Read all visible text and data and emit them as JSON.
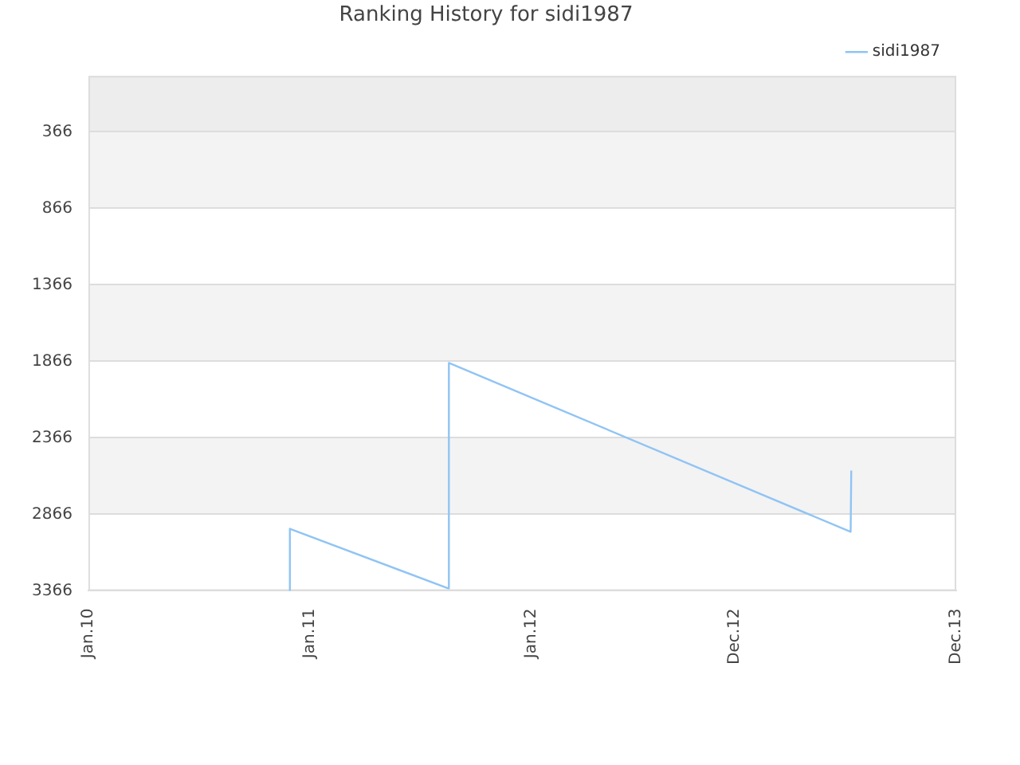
{
  "chart_data": {
    "type": "line",
    "title": "Ranking History for sidi1987",
    "x": [
      "2010-11-28",
      "2010-11-29",
      "2011-08-17",
      "2011-08-18",
      "2013-06-10",
      "2013-06-11"
    ],
    "series": [
      {
        "name": "sidi1987",
        "color": "#90c4f4",
        "values": [
          3366,
          2960,
          3350,
          1876,
          2980,
          2580
        ]
      }
    ],
    "xlim": [
      "2010-01-01",
      "2013-12-01"
    ],
    "xticks": [
      {
        "value": "2010-01-01",
        "label": "Jan.10"
      },
      {
        "value": "2011-01-01",
        "label": "Jan.11"
      },
      {
        "value": "2012-01-01",
        "label": "Jan.12"
      },
      {
        "value": "2012-12-01",
        "label": "Dec.12"
      },
      {
        "value": "2013-12-01",
        "label": "Dec.13"
      }
    ],
    "ylim": [
      3366,
      0
    ],
    "yticks": [
      366,
      866,
      1366,
      1866,
      2366,
      2866,
      3366
    ],
    "bands": [
      {
        "axis": "y",
        "from": 0,
        "to": 366,
        "color": "#ededed"
      },
      {
        "axis": "y",
        "from": 366,
        "to": 866,
        "color": "#f3f3f3"
      },
      {
        "axis": "y",
        "from": 1366,
        "to": 1866,
        "color": "#f3f3f3"
      },
      {
        "axis": "y",
        "from": 2366,
        "to": 2866,
        "color": "#f3f3f3"
      }
    ],
    "grid": "y",
    "legend": "top right",
    "marker": "none",
    "line_style": "solid"
  }
}
